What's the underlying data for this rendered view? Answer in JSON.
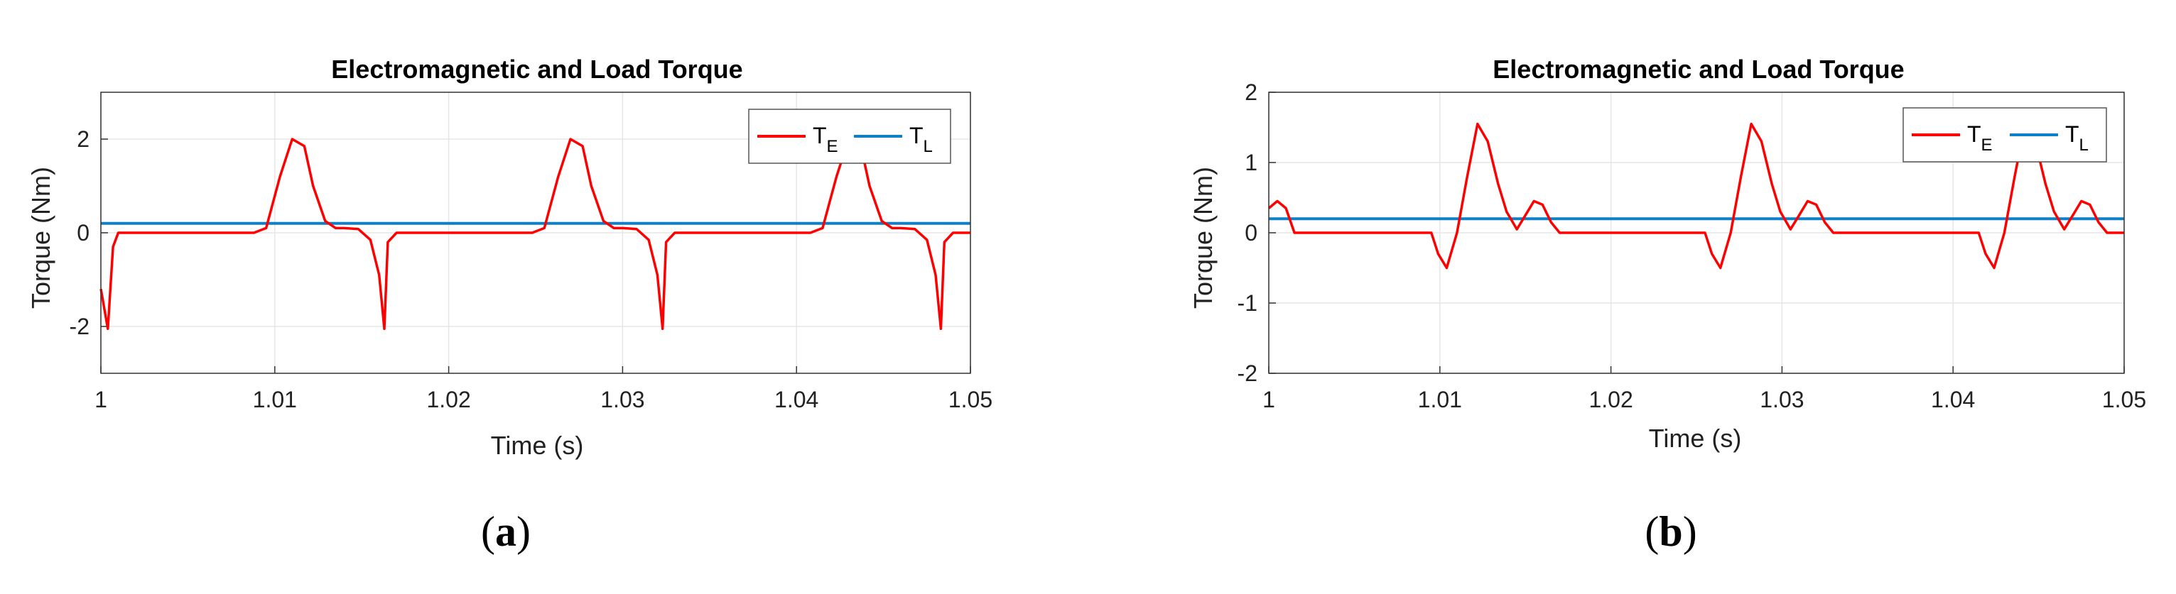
{
  "colors": {
    "te": "#ff0000",
    "tl": "#0e7fc9",
    "grid": "#e6e6e6",
    "axis": "#333333"
  },
  "captions": [
    {
      "open": "(",
      "letter": "a",
      "close": ")"
    },
    {
      "open": "(",
      "letter": "b",
      "close": ")"
    }
  ],
  "chart_data": [
    {
      "type": "line",
      "title": "Electromagnetic and Load Torque",
      "xlabel": "Time (s)",
      "ylabel": "Torque (Nm)",
      "xlim": [
        1,
        1.05
      ],
      "ylim": [
        -3,
        3
      ],
      "xticks": [
        1,
        1.01,
        1.02,
        1.03,
        1.04,
        1.05
      ],
      "xtick_labels": [
        "1",
        "1.01",
        "1.02",
        "1.03",
        "1.04",
        "1.05"
      ],
      "yticks": [
        2,
        0,
        -2
      ],
      "ytick_labels": [
        "2",
        "0",
        "-2"
      ],
      "grid": true,
      "legend_position": "top-right",
      "series": [
        {
          "name": "T_E",
          "label_main": "T",
          "label_sub": "E",
          "color": "#ff0000",
          "x": [
            1.0,
            1.0004,
            1.0007,
            1.001,
            1.0088,
            1.0095,
            1.0103,
            1.011,
            1.0117,
            1.0122,
            1.0129,
            1.0135,
            1.014,
            1.0148,
            1.0155,
            1.016,
            1.0163,
            1.0165,
            1.017,
            1.0248,
            1.0255,
            1.0263,
            1.027,
            1.0277,
            1.0282,
            1.0289,
            1.0295,
            1.03,
            1.0308,
            1.0315,
            1.032,
            1.0323,
            1.0325,
            1.033,
            1.0408,
            1.0415,
            1.0423,
            1.043,
            1.0437,
            1.0442,
            1.0449,
            1.0455,
            1.046,
            1.0468,
            1.0475,
            1.048,
            1.0483,
            1.0485,
            1.049,
            1.05
          ],
          "y": [
            -1.2,
            -2.05,
            -0.3,
            0.0,
            0.0,
            0.1,
            1.2,
            2.0,
            1.85,
            1.0,
            0.25,
            0.1,
            0.1,
            0.08,
            -0.15,
            -0.9,
            -2.05,
            -0.2,
            0.0,
            0.0,
            0.1,
            1.2,
            2.0,
            1.85,
            1.0,
            0.25,
            0.1,
            0.1,
            0.08,
            -0.15,
            -0.9,
            -2.05,
            -0.2,
            0.0,
            0.0,
            0.1,
            1.2,
            2.0,
            1.85,
            1.0,
            0.25,
            0.1,
            0.1,
            0.08,
            -0.15,
            -0.9,
            -2.05,
            -0.2,
            0.0,
            0.0
          ]
        },
        {
          "name": "T_L",
          "label_main": "T",
          "label_sub": "L",
          "color": "#0e7fc9",
          "x": [
            1.0,
            1.05
          ],
          "y": [
            0.2,
            0.2
          ]
        }
      ]
    },
    {
      "type": "line",
      "title": "Electromagnetic and Load Torque",
      "xlabel": "Time (s)",
      "ylabel": "Torque (Nm)",
      "xlim": [
        1,
        1.05
      ],
      "ylim": [
        -2,
        2
      ],
      "xticks": [
        1,
        1.01,
        1.02,
        1.03,
        1.04,
        1.05
      ],
      "xtick_labels": [
        "1",
        "1.01",
        "1.02",
        "1.03",
        "1.04",
        "1.05"
      ],
      "yticks": [
        2,
        1,
        0,
        -1,
        -2
      ],
      "ytick_labels": [
        "2",
        "1",
        "0",
        "-1",
        "-2"
      ],
      "grid": true,
      "legend_position": "top-right",
      "series": [
        {
          "name": "T_E",
          "label_main": "T",
          "label_sub": "E",
          "color": "#ff0000",
          "x": [
            1.0,
            1.0005,
            1.001,
            1.0015,
            1.0095,
            1.0099,
            1.0104,
            1.011,
            1.0116,
            1.0122,
            1.0128,
            1.0134,
            1.0139,
            1.0145,
            1.015,
            1.0155,
            1.016,
            1.0165,
            1.017,
            1.0175,
            1.0255,
            1.0259,
            1.0264,
            1.027,
            1.0276,
            1.0282,
            1.0288,
            1.0294,
            1.0299,
            1.0305,
            1.031,
            1.0315,
            1.032,
            1.0325,
            1.033,
            1.0335,
            1.0415,
            1.0419,
            1.0424,
            1.043,
            1.0436,
            1.0442,
            1.0448,
            1.0454,
            1.0459,
            1.0465,
            1.047,
            1.0475,
            1.048,
            1.0485,
            1.049,
            1.0495,
            1.05
          ],
          "y": [
            0.35,
            0.45,
            0.35,
            0.0,
            0.0,
            -0.3,
            -0.5,
            0.0,
            0.8,
            1.55,
            1.3,
            0.7,
            0.3,
            0.05,
            0.25,
            0.45,
            0.4,
            0.15,
            0.0,
            0.0,
            0.0,
            -0.3,
            -0.5,
            0.0,
            0.8,
            1.55,
            1.3,
            0.7,
            0.3,
            0.05,
            0.25,
            0.45,
            0.4,
            0.15,
            0.0,
            0.0,
            0.0,
            -0.3,
            -0.5,
            0.0,
            0.8,
            1.55,
            1.3,
            0.7,
            0.3,
            0.05,
            0.25,
            0.45,
            0.4,
            0.15,
            0.0,
            0.0,
            0.0
          ]
        },
        {
          "name": "T_L",
          "label_main": "T",
          "label_sub": "L",
          "color": "#0e7fc9",
          "x": [
            1.0,
            1.05
          ],
          "y": [
            0.2,
            0.2
          ]
        }
      ]
    }
  ]
}
